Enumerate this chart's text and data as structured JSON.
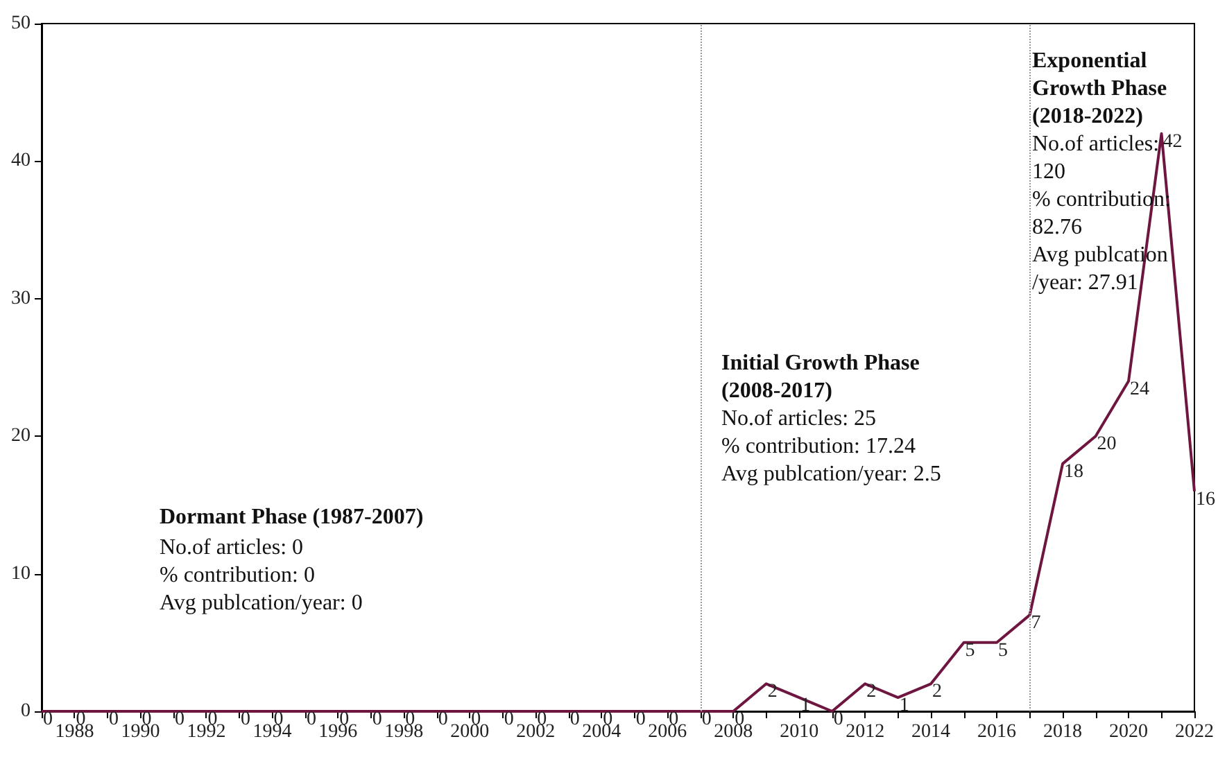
{
  "chart_data": {
    "type": "line",
    "x": [
      1987,
      1988,
      1989,
      1990,
      1991,
      1992,
      1993,
      1994,
      1995,
      1996,
      1997,
      1998,
      1999,
      2000,
      2001,
      2002,
      2003,
      2004,
      2005,
      2006,
      2007,
      2008,
      2009,
      2010,
      2011,
      2012,
      2013,
      2014,
      2015,
      2016,
      2017,
      2018,
      2019,
      2020,
      2021,
      2022
    ],
    "series": [
      {
        "color": "#6e1640",
        "values": [
          0,
          0,
          0,
          0,
          0,
          0,
          0,
          0,
          0,
          0,
          0,
          0,
          0,
          0,
          0,
          0,
          0,
          0,
          0,
          0,
          0,
          0,
          2,
          1,
          0,
          2,
          1,
          2,
          5,
          5,
          7,
          18,
          20,
          24,
          42,
          16
        ]
      }
    ],
    "xlim": [
      1987,
      2022
    ],
    "xticks": [
      {
        "value": 1987,
        "label": null
      },
      1988,
      {
        "value": 1989,
        "label": null
      },
      1990,
      {
        "value": 1991,
        "label": null
      },
      1992,
      {
        "value": 1993,
        "label": null
      },
      1994,
      {
        "value": 1995,
        "label": null
      },
      1996,
      {
        "value": 1997,
        "label": null
      },
      1998,
      {
        "value": 1999,
        "label": null
      },
      2000,
      {
        "value": 2001,
        "label": null
      },
      2002,
      {
        "value": 2003,
        "label": null
      },
      2004,
      {
        "value": 2005,
        "label": null
      },
      2006,
      {
        "value": 2007,
        "label": null
      },
      2008,
      {
        "value": 2009,
        "label": null
      },
      2010,
      {
        "value": 2011,
        "label": null
      },
      2012,
      {
        "value": 2013,
        "label": null
      },
      2014,
      {
        "value": 2015,
        "label": null
      },
      2016,
      {
        "value": 2017,
        "label": null
      },
      2018,
      {
        "value": 2019,
        "label": null
      },
      2020,
      {
        "value": 2021,
        "label": null
      },
      2022
    ],
    "ylim": [
      0,
      50
    ],
    "yticks": [
      0,
      10,
      20,
      30,
      40,
      50
    ],
    "grid": false,
    "marker": "none",
    "line_style": "solid",
    "data_labels": true,
    "ref_lines": [
      {
        "axis": "x",
        "value": 2007,
        "color": "#999999",
        "line_style": "dotted"
      },
      {
        "axis": "x",
        "value": 2017,
        "color": "#999999",
        "line_style": "dotted"
      }
    ],
    "annotations": [
      "Dormant Phase (1987-2007)",
      "No.of articles: 0\n% contribution: 0\nAvg publcation/year: 0",
      "Initial Growth Phase\n(2008-2017)",
      "No.of articles: 25\n% contribution: 17.24\nAvg publcation/year: 2.5",
      "Exponential\nGrowth Phase\n(2018-2022)",
      "No.of articles:\n120\n% contribution:\n82.76\nAvg publcation\n/year: 27.91"
    ]
  }
}
